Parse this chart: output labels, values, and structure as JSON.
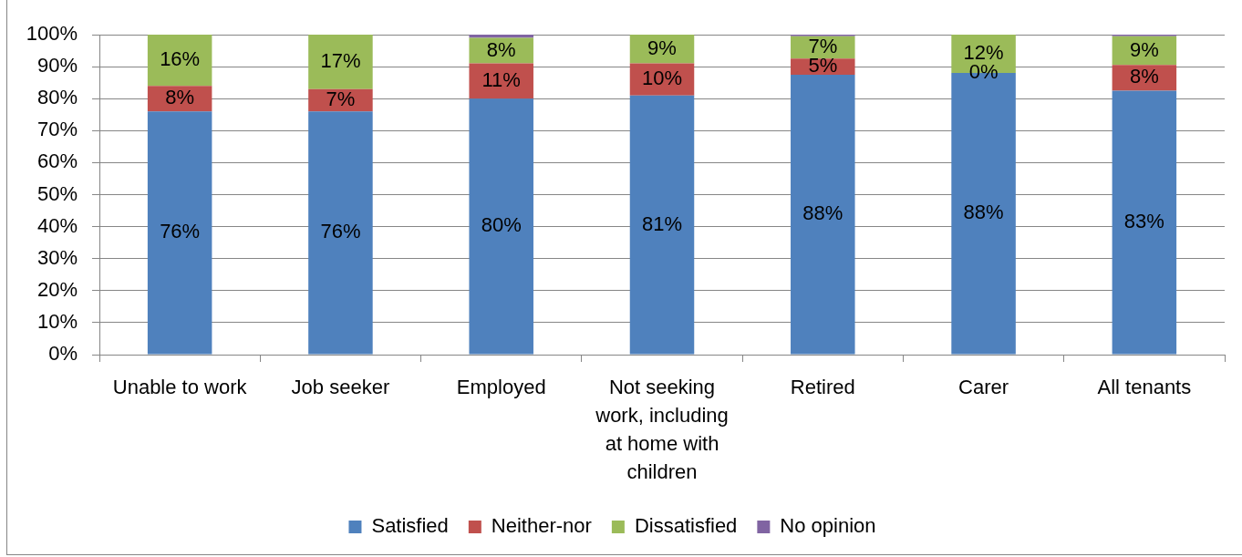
{
  "chart_data": {
    "type": "bar",
    "stacked": true,
    "categories": [
      "Unable to work",
      "Job seeker",
      "Employed",
      "Not seeking work, including at home with children",
      "Retired",
      "Carer",
      "All tenants"
    ],
    "series": [
      {
        "name": "Satisfied",
        "color": "#4f81bd",
        "values": [
          76,
          76,
          80,
          81,
          87.5,
          88,
          82.5
        ],
        "value_labels": [
          "76%",
          "76%",
          "80%",
          "81%",
          "88%",
          "88%",
          "83%"
        ]
      },
      {
        "name": "Neither-nor",
        "color": "#c0504d",
        "values": [
          8,
          7,
          11,
          10,
          5,
          0,
          8
        ],
        "value_labels": [
          "8%",
          "7%",
          "11%",
          "10%",
          "5%",
          "0%",
          "8%"
        ]
      },
      {
        "name": "Dissatisfied",
        "color": "#9bbb59",
        "values": [
          16,
          17,
          8,
          9,
          7,
          12,
          9
        ],
        "value_labels": [
          "16%",
          "17%",
          "8%",
          "9%",
          "7%",
          "12%",
          "9%"
        ]
      },
      {
        "name": "No opinion",
        "color": "#8064a2",
        "values": [
          0,
          0,
          1,
          0,
          0.5,
          0,
          0.5
        ]
      }
    ],
    "ylim": [
      0,
      100
    ],
    "yticks": [
      {
        "value": 0,
        "label": "0%"
      },
      {
        "value": 10,
        "label": "10%"
      },
      {
        "value": 20,
        "label": "20%"
      },
      {
        "value": 30,
        "label": "30%"
      },
      {
        "value": 40,
        "label": "40%"
      },
      {
        "value": 50,
        "label": "50%"
      },
      {
        "value": 60,
        "label": "60%"
      },
      {
        "value": 70,
        "label": "70%"
      },
      {
        "value": 80,
        "label": "80%"
      },
      {
        "value": 90,
        "label": "90%"
      },
      {
        "value": 100,
        "label": "100%"
      }
    ],
    "grid": "y",
    "legend": "bottom"
  }
}
